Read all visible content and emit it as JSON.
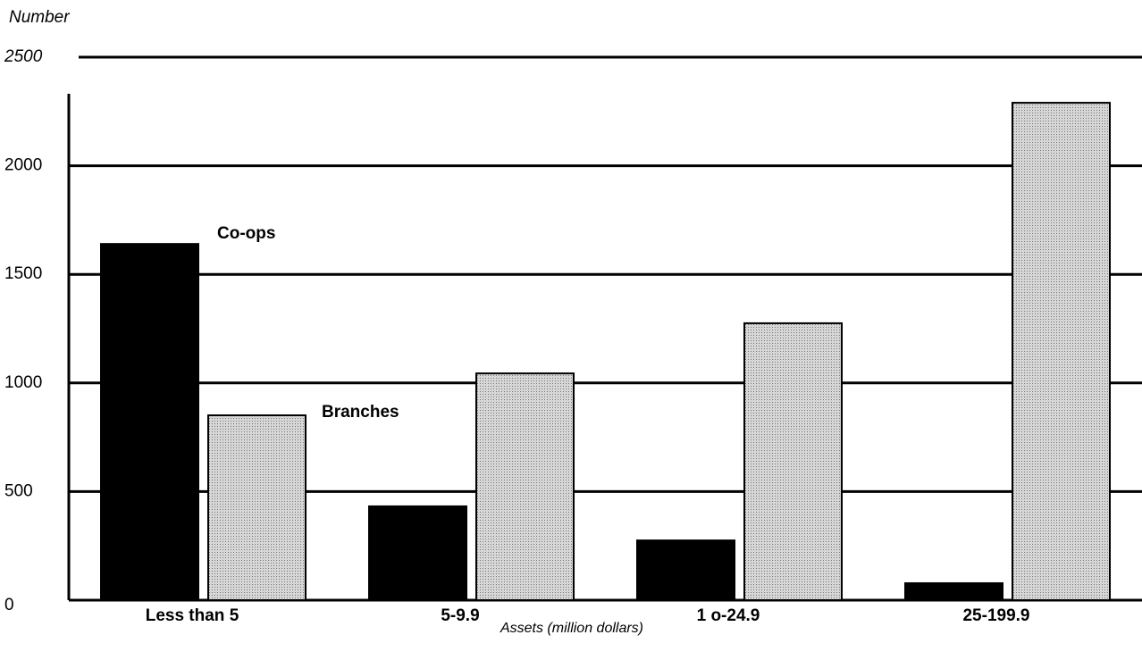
{
  "chart_data": {
    "type": "bar",
    "y_label": "Number",
    "x_label": "Assets (million dollars)",
    "categories": [
      "Less than 5",
      "5-9.9",
      "1 o-24.9",
      "25-199.9"
    ],
    "series": [
      {
        "name": "Co-ops",
        "color": "#000000",
        "values": [
          1640,
          432,
          275,
          78
        ]
      },
      {
        "name": "Branches",
        "color": "#d6d6d6",
        "values": [
          851,
          1044,
          1275,
          2290
        ]
      }
    ],
    "ylim": [
      0,
      2500
    ],
    "yticks": [
      0,
      500,
      1000,
      1500,
      2000,
      2500
    ],
    "grid": true
  }
}
